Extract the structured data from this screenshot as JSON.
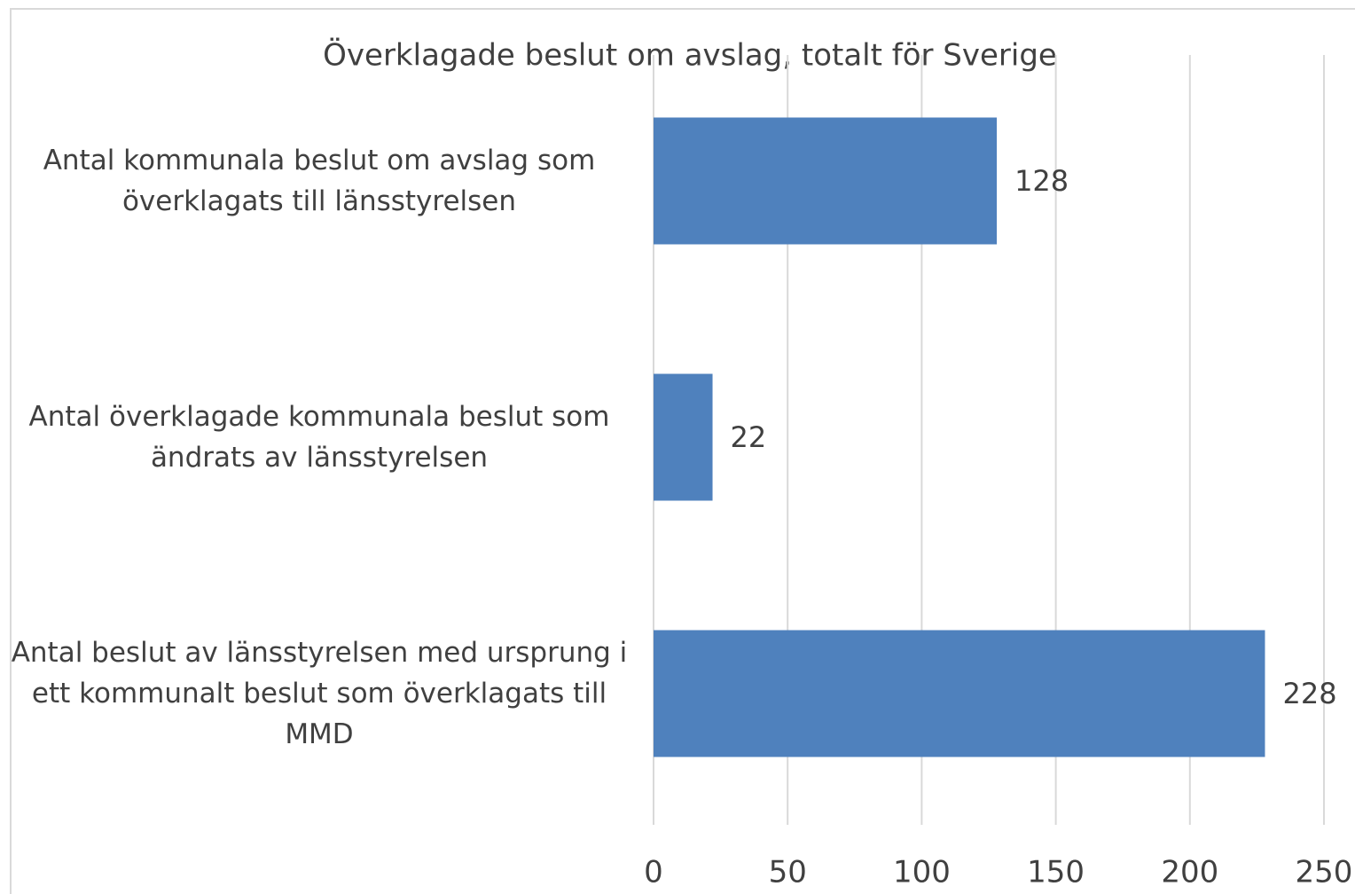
{
  "chart_data": {
    "type": "bar",
    "orientation": "horizontal",
    "title": "Överklagade beslut om avslag, totalt för Sverige",
    "categories": [
      "Antal kommunala beslut om avslag som överklagats till länsstyrelsen",
      "Antal överklagade kommunala beslut som ändrats av länsstyrelsen",
      "Antal beslut av länsstyrelsen med ursprung i ett kommunalt beslut som överklagats till MMD"
    ],
    "values": [
      128,
      22,
      228
    ],
    "color": "#4f81bd",
    "xlim": [
      0,
      250
    ],
    "xticks": [
      0,
      50,
      100,
      150,
      200,
      250
    ],
    "grid": true
  }
}
